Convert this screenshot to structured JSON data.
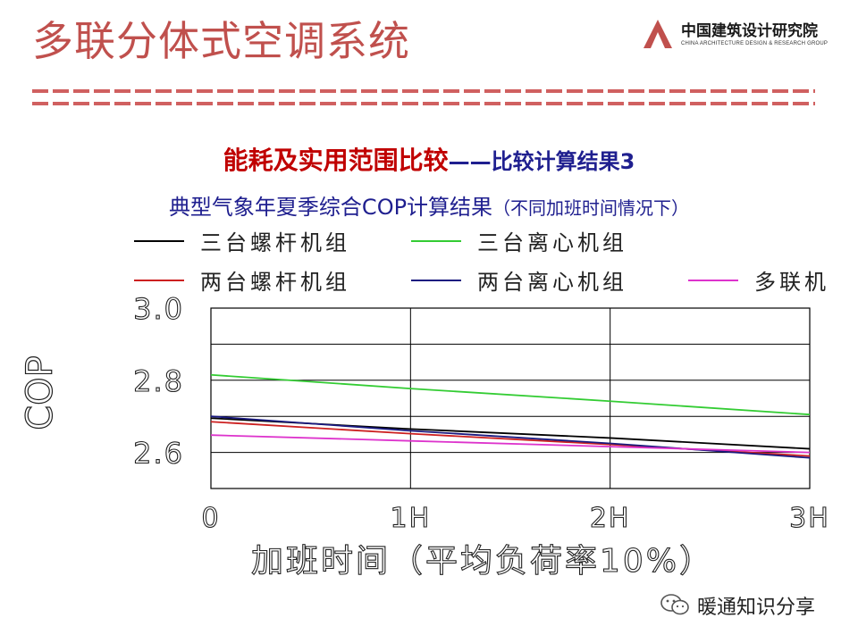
{
  "header": {
    "title": "多联分体式空调系统",
    "logo_cn": "中国建筑设计研究院",
    "logo_en": "CHINA ARCHITECTURE DESIGN & RESEARCH GROUP"
  },
  "subtitle": {
    "red": "能耗及实用范围比较",
    "blue": "——比较计算结果3"
  },
  "caption": {
    "main": "典型气象年夏季综合COP计算结果",
    "note": "（不同加班时间情况下）"
  },
  "watermark": {
    "text": "暖通知识分享"
  },
  "colors": {
    "title": "#c0504d",
    "subtitle_red": "#c00000",
    "subtitle_blue": "#1f1f8f"
  },
  "chart_data": {
    "type": "line",
    "x": [
      0,
      1,
      2,
      3
    ],
    "xticks": [
      "0",
      "1H",
      "2H",
      "3H"
    ],
    "yticks": [
      "3.0",
      "2.8",
      "2.6"
    ],
    "ylim": [
      2.5,
      3.0
    ],
    "xlabel": "加班时间（平均负荷率10%）",
    "ylabel": "COP",
    "grid": true,
    "legend_position": "top",
    "series": [
      {
        "name": "三台螺杆机组",
        "color": "#000000",
        "values": [
          2.695,
          2.665,
          2.64,
          2.61
        ]
      },
      {
        "name": "三台离心机组",
        "color": "#33cc33",
        "values": [
          2.815,
          2.777,
          2.742,
          2.705
        ]
      },
      {
        "name": "两台螺杆机组",
        "color": "#cc2020",
        "values": [
          2.685,
          2.652,
          2.622,
          2.59
        ]
      },
      {
        "name": "两台离心机组",
        "color": "#1a1a80",
        "values": [
          2.7,
          2.66,
          2.625,
          2.585
        ]
      },
      {
        "name": "多联机",
        "color": "#dd33cc",
        "values": [
          2.648,
          2.632,
          2.616,
          2.6
        ]
      }
    ]
  }
}
